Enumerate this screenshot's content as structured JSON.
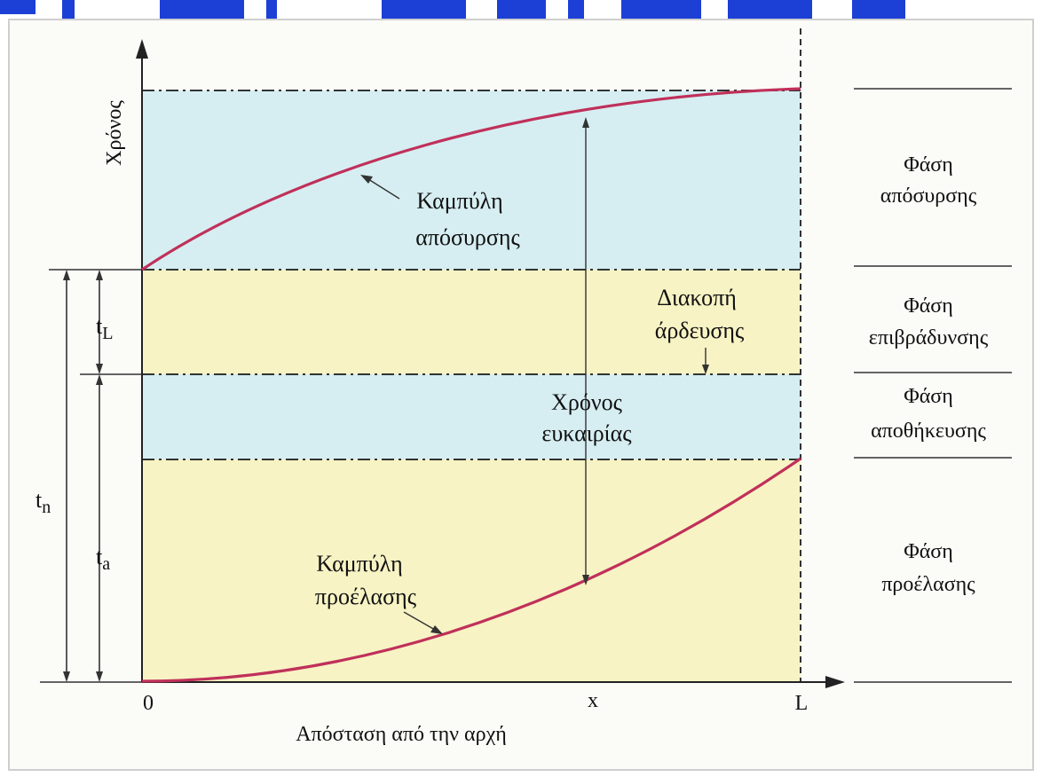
{
  "diagram": {
    "y_axis_label": "Χρόνος",
    "x_axis_label": "Απόσταση από την αρχή",
    "x_ticks": {
      "origin": "0",
      "x": "x",
      "end": "L"
    },
    "curve_labels": {
      "withdrawal": [
        "Καμπύλη",
        "απόσυρσης"
      ],
      "advance": [
        "Καμπύλη",
        "προέλασης"
      ]
    },
    "annotations": {
      "cutoff": [
        "Διακοπή",
        "άρδευσης"
      ],
      "opportunity": [
        "Χρόνος",
        "ευκαιρίας"
      ]
    },
    "time_symbols": {
      "tn": [
        "t",
        "n"
      ],
      "tL": [
        "t",
        "L"
      ],
      "ta": [
        "t",
        "a"
      ]
    },
    "phases": [
      {
        "key": "withdrawal",
        "lines": [
          "Φάση",
          "απόσυρσης"
        ]
      },
      {
        "key": "recession",
        "lines": [
          "Φάση",
          "επιβράδυνσης"
        ]
      },
      {
        "key": "storage",
        "lines": [
          "Φάση",
          "αποθήκευσης"
        ]
      },
      {
        "key": "advance",
        "lines": [
          "Φάση",
          "προέλασης"
        ]
      }
    ],
    "colors": {
      "curve": "#c0305a",
      "blue_band": "#d6eef2",
      "yellow_band": "#f7f3c4",
      "lines": "#333333",
      "header_text": "#1c3fd6"
    }
  }
}
